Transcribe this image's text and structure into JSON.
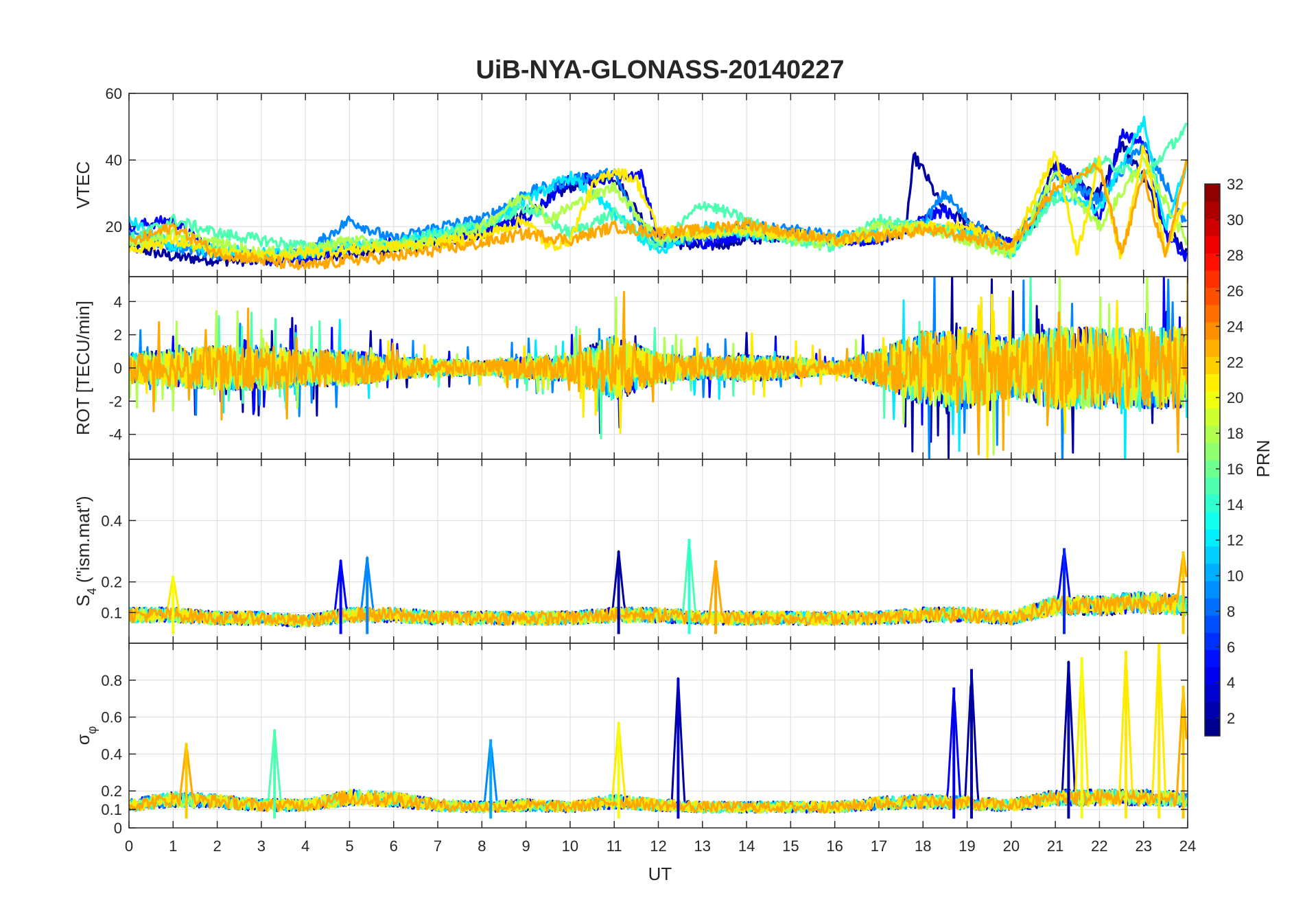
{
  "figure_title": "UiB-NYA-GLONASS-20140227",
  "x_axis": {
    "label": "UT",
    "range": [
      0,
      24
    ],
    "ticks": [
      0,
      1,
      2,
      3,
      4,
      5,
      6,
      7,
      8,
      9,
      10,
      11,
      12,
      13,
      14,
      15,
      16,
      17,
      18,
      19,
      20,
      21,
      22,
      23,
      24
    ]
  },
  "colorbar": {
    "label": "PRN",
    "range": [
      1,
      32
    ],
    "ticks": [
      2,
      4,
      6,
      8,
      10,
      12,
      14,
      16,
      18,
      20,
      22,
      24,
      26,
      28,
      30,
      32
    ],
    "colormap": "jet",
    "colors": [
      "#00007f",
      "#0000ff",
      "#007fff",
      "#00ffff",
      "#7fff7f",
      "#ffff00",
      "#ff7f00",
      "#ff0000",
      "#7f0000"
    ]
  },
  "chart_data": [
    {
      "type": "line",
      "panel": "VTEC",
      "ylabel": "VTEC",
      "ylim": [
        5,
        60
      ],
      "yticks": [
        20,
        40,
        60
      ],
      "grid": true,
      "series": [
        {
          "prn": 2,
          "x": [
            0,
            1,
            2,
            3,
            4,
            5,
            6,
            7,
            8,
            9,
            10,
            11,
            11.5,
            12,
            13,
            14,
            15,
            16,
            17,
            17.6,
            17.8,
            18,
            18.5,
            19,
            20,
            20.5,
            21,
            21.5,
            22,
            22.5,
            23,
            23.5,
            24
          ],
          "y": [
            14,
            11,
            10,
            10,
            11,
            12,
            13,
            15,
            18,
            24,
            32,
            35,
            25,
            16,
            14,
            16,
            18,
            16,
            16,
            19,
            41,
            37,
            24,
            22,
            14,
            20,
            40,
            33,
            30,
            45,
            35,
            20,
            12
          ]
        },
        {
          "prn": 5,
          "x": [
            0,
            1,
            2,
            3,
            4,
            5,
            6,
            7,
            8,
            9,
            10,
            11,
            11.6,
            12,
            13,
            14,
            15,
            16,
            17,
            18,
            18.5,
            19,
            20,
            20.6,
            21,
            21.5,
            22,
            22.5,
            23,
            23.5,
            24
          ],
          "y": [
            20,
            22,
            12,
            10,
            10,
            14,
            15,
            16,
            19,
            22,
            34,
            35,
            36,
            17,
            15,
            18,
            17,
            16,
            16,
            22,
            25,
            19,
            15,
            22,
            38,
            35,
            22,
            48,
            45,
            18,
            10
          ]
        },
        {
          "prn": 9,
          "x": [
            0,
            1,
            2,
            3,
            4,
            5,
            6,
            7,
            8,
            9,
            10,
            11,
            11.5,
            12,
            13,
            14,
            15,
            16,
            17,
            18,
            18.5,
            19,
            20,
            21,
            22,
            23,
            24
          ],
          "y": [
            18,
            14,
            12,
            11,
            12,
            22,
            16,
            20,
            22,
            30,
            34,
            36,
            22,
            15,
            17,
            20,
            19,
            17,
            17,
            21,
            30,
            22,
            14,
            35,
            28,
            45,
            20
          ]
        },
        {
          "prn": 12,
          "x": [
            0,
            1,
            2,
            3,
            4,
            5,
            6,
            7,
            8,
            9,
            10,
            11,
            11.5,
            12,
            13,
            14,
            15,
            16,
            17,
            18,
            19,
            20,
            21,
            22,
            23,
            23.5,
            24
          ],
          "y": [
            22,
            14,
            13,
            12,
            12,
            14,
            15,
            18,
            20,
            28,
            35,
            24,
            18,
            12,
            20,
            18,
            16,
            17,
            18,
            21,
            18,
            12,
            30,
            25,
            52,
            20,
            40
          ]
        },
        {
          "prn": 15,
          "x": [
            0,
            1,
            2,
            3,
            4,
            5,
            6,
            7,
            8,
            9,
            10,
            11,
            12,
            13,
            14,
            15,
            16,
            17,
            18,
            19,
            20,
            21,
            22,
            23,
            24
          ],
          "y": [
            16,
            22,
            18,
            16,
            14,
            15,
            14,
            18,
            20,
            26,
            18,
            24,
            14,
            27,
            22,
            16,
            14,
            22,
            20,
            17,
            13,
            28,
            40,
            35,
            50
          ]
        },
        {
          "prn": 18,
          "x": [
            0,
            1,
            2,
            3,
            4,
            5,
            6,
            7,
            8,
            9,
            9.5,
            10,
            11,
            12,
            13,
            14,
            15,
            16,
            17,
            18,
            19,
            20,
            21,
            22,
            23,
            24
          ],
          "y": [
            14,
            18,
            15,
            12,
            13,
            16,
            14,
            16,
            20,
            30,
            22,
            26,
            32,
            16,
            18,
            19,
            16,
            15,
            20,
            20,
            16,
            12,
            36,
            20,
            40,
            15
          ]
        },
        {
          "prn": 21,
          "x": [
            0,
            1,
            2,
            3,
            4,
            5,
            6,
            7,
            8,
            9,
            9.5,
            10,
            10.5,
            11,
            11.5,
            12,
            13,
            14,
            15,
            16,
            17,
            18,
            19,
            20,
            21,
            21.5,
            22,
            22.5,
            23,
            23.5,
            24
          ],
          "y": [
            13,
            16,
            12,
            11,
            12,
            13,
            14,
            15,
            17,
            22,
            14,
            16,
            32,
            37,
            34,
            19,
            18,
            19,
            18,
            16,
            17,
            20,
            20,
            14,
            42,
            12,
            40,
            10,
            45,
            12,
            30
          ]
        },
        {
          "prn": 23,
          "x": [
            0,
            1,
            2,
            3,
            4,
            5,
            6,
            7,
            8,
            9,
            10,
            11,
            12,
            13,
            14,
            15,
            16,
            17,
            18,
            19,
            20,
            21,
            22,
            22.5,
            23,
            23.5,
            24
          ],
          "y": [
            15,
            20,
            12,
            10,
            8,
            10,
            11,
            13,
            15,
            18,
            16,
            20,
            18,
            19,
            21,
            18,
            16,
            17,
            19,
            17,
            14,
            32,
            38,
            12,
            36,
            10,
            42
          ]
        }
      ]
    },
    {
      "type": "line",
      "panel": "ROT",
      "ylabel": "ROT [TECU/min]",
      "ylim": [
        -5.5,
        5.5
      ],
      "yticks": [
        -4,
        -2,
        0,
        2,
        4
      ],
      "grid": true,
      "activity_hours": [
        0,
        1,
        2,
        3,
        4,
        5,
        6,
        7,
        8,
        9,
        10,
        11,
        12,
        13,
        14,
        15,
        16,
        17,
        18,
        19,
        20,
        21,
        22,
        23,
        24
      ],
      "activity_amplitude": [
        2.0,
        2.5,
        3.0,
        3.0,
        2.5,
        2.5,
        1.5,
        1.2,
        1.0,
        1.5,
        1.8,
        4.5,
        2.0,
        1.5,
        1.8,
        1.5,
        0.8,
        2.5,
        5.0,
        5.5,
        4.0,
        5.5,
        5.5,
        5.5,
        5.5
      ]
    },
    {
      "type": "line",
      "panel": "S4",
      "ylabel": "S4 (\"ism.mat\")",
      "ylabel_main": "S",
      "ylabel_sub": "4",
      "ylabel_rest": " (\"ism.mat\")",
      "ylim": [
        0,
        0.6
      ],
      "yticks": [
        0.1,
        0.2,
        0.4
      ],
      "grid": true,
      "baseline_hours": [
        0,
        1,
        2,
        3,
        4,
        5,
        6,
        7,
        8,
        9,
        10,
        11,
        12,
        13,
        14,
        15,
        16,
        17,
        18,
        19,
        20,
        21,
        22,
        23,
        24
      ],
      "baseline": [
        0.09,
        0.09,
        0.08,
        0.08,
        0.07,
        0.09,
        0.09,
        0.08,
        0.08,
        0.08,
        0.08,
        0.09,
        0.09,
        0.08,
        0.08,
        0.08,
        0.08,
        0.08,
        0.09,
        0.09,
        0.08,
        0.12,
        0.12,
        0.13,
        0.12
      ],
      "peaks": [
        {
          "prn": 5,
          "x": 4.8,
          "y": 0.27
        },
        {
          "prn": 9,
          "x": 5.4,
          "y": 0.28
        },
        {
          "prn": 2,
          "x": 11.1,
          "y": 0.3
        },
        {
          "prn": 14,
          "x": 12.7,
          "y": 0.34
        },
        {
          "prn": 23,
          "x": 13.3,
          "y": 0.27
        },
        {
          "prn": 20,
          "x": 1.0,
          "y": 0.22
        },
        {
          "prn": 6,
          "x": 21.2,
          "y": 0.31
        },
        {
          "prn": 22,
          "x": 23.9,
          "y": 0.3
        }
      ]
    },
    {
      "type": "line",
      "panel": "sigma_phi",
      "ylabel": "σφ",
      "ylabel_main": "σ",
      "ylabel_sub": "φ",
      "ylim": [
        0,
        1
      ],
      "yticks": [
        0,
        0.1,
        0.2,
        0.4,
        0.6,
        0.8
      ],
      "grid": true,
      "baseline_hours": [
        0,
        1,
        2,
        3,
        4,
        5,
        6,
        7,
        8,
        9,
        10,
        11,
        12,
        13,
        14,
        15,
        16,
        17,
        18,
        19,
        20,
        21,
        22,
        23,
        24
      ],
      "baseline": [
        0.12,
        0.15,
        0.14,
        0.12,
        0.12,
        0.16,
        0.15,
        0.12,
        0.11,
        0.12,
        0.11,
        0.14,
        0.12,
        0.11,
        0.11,
        0.11,
        0.11,
        0.13,
        0.14,
        0.13,
        0.12,
        0.16,
        0.16,
        0.16,
        0.15
      ],
      "peaks": [
        {
          "prn": 3,
          "x": 12.45,
          "y": 0.81
        },
        {
          "prn": 2,
          "x": 19.1,
          "y": 0.86
        },
        {
          "prn": 4,
          "x": 18.7,
          "y": 0.76
        },
        {
          "prn": 2,
          "x": 21.3,
          "y": 0.9
        },
        {
          "prn": 20,
          "x": 21.6,
          "y": 0.92
        },
        {
          "prn": 21,
          "x": 22.6,
          "y": 0.96
        },
        {
          "prn": 21,
          "x": 23.35,
          "y": 1.0
        },
        {
          "prn": 22,
          "x": 23.9,
          "y": 0.77
        },
        {
          "prn": 15,
          "x": 3.3,
          "y": 0.53
        },
        {
          "prn": 20,
          "x": 11.1,
          "y": 0.57
        },
        {
          "prn": 10,
          "x": 8.2,
          "y": 0.48
        },
        {
          "prn": 22,
          "x": 1.3,
          "y": 0.46
        }
      ]
    }
  ]
}
